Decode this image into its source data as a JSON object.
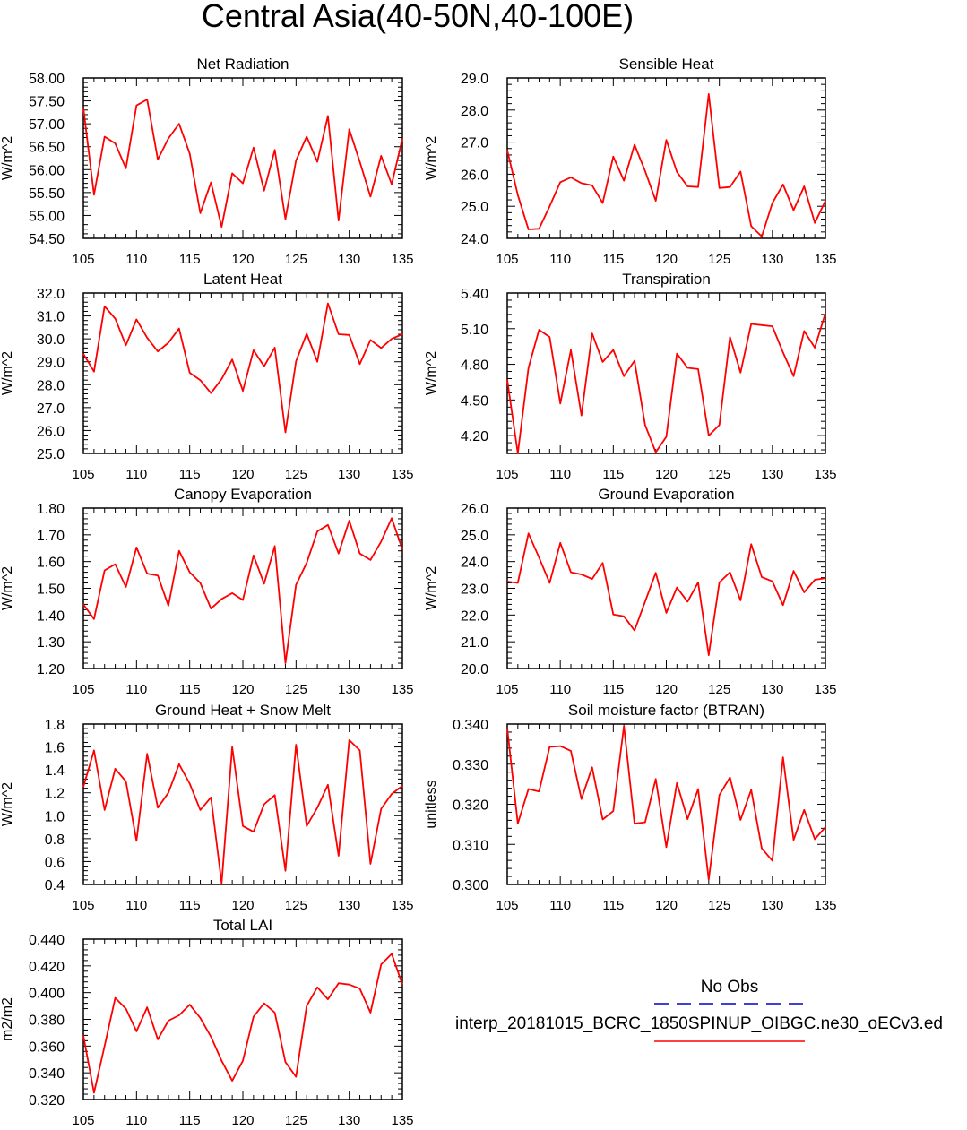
{
  "title": "Central Asia(40-50N,40-100E)",
  "legend": {
    "obs_label": "No Obs",
    "model_label": "interp_20181015_BCRC_1850SPINUP_OIBGC.ne30_oECv3.ed",
    "obs_color": "#0000cc",
    "model_color": "#ff0000"
  },
  "line_color": "#ff0000",
  "chart_data": [
    {
      "type": "line",
      "title": "Net Radiation",
      "ylabel": "W/m^2",
      "xlim": [
        105,
        135
      ],
      "xticks": [
        "105",
        "110",
        "115",
        "120",
        "125",
        "130",
        "135"
      ],
      "ylim": [
        54.5,
        58.0
      ],
      "yticks": [
        "54.50",
        "55.00",
        "55.50",
        "56.00",
        "56.50",
        "57.00",
        "57.50",
        "58.00"
      ],
      "x_start": 105,
      "values": [
        57.35,
        55.45,
        56.72,
        56.57,
        56.03,
        57.4,
        57.53,
        56.22,
        56.68,
        57.0,
        56.35,
        55.05,
        55.72,
        54.75,
        55.92,
        55.7,
        56.48,
        55.54,
        56.43,
        54.92,
        56.2,
        56.72,
        56.17,
        57.17,
        54.89,
        56.88,
        56.17,
        55.41,
        56.3,
        55.68,
        56.68
      ]
    },
    {
      "type": "line",
      "title": "Sensible Heat",
      "ylabel": "W/m^2",
      "xlim": [
        105,
        135
      ],
      "xticks": [
        "105",
        "110",
        "115",
        "120",
        "125",
        "130",
        "135"
      ],
      "ylim": [
        24.0,
        29.0
      ],
      "yticks": [
        "24.0",
        "25.0",
        "26.0",
        "27.0",
        "28.0",
        "29.0"
      ],
      "x_start": 105,
      "values": [
        26.75,
        25.35,
        24.28,
        24.3,
        25.0,
        25.75,
        25.9,
        25.72,
        25.65,
        25.1,
        26.55,
        25.8,
        26.92,
        26.1,
        25.17,
        27.07,
        26.07,
        25.62,
        25.6,
        28.5,
        25.57,
        25.6,
        26.08,
        24.38,
        24.06,
        25.1,
        25.68,
        24.88,
        25.62,
        24.48,
        25.17
      ]
    },
    {
      "type": "line",
      "title": "Latent Heat",
      "ylabel": "W/m^2",
      "xlim": [
        105,
        135
      ],
      "xticks": [
        "105",
        "110",
        "115",
        "120",
        "125",
        "130",
        "135"
      ],
      "ylim": [
        25.0,
        32.0
      ],
      "yticks": [
        "25.0",
        "26.0",
        "27.0",
        "28.0",
        "29.0",
        "30.0",
        "31.0",
        "32.0"
      ],
      "x_start": 105,
      "values": [
        29.35,
        28.57,
        31.42,
        30.88,
        29.72,
        30.85,
        30.05,
        29.45,
        29.83,
        30.45,
        28.52,
        28.2,
        27.63,
        28.25,
        29.1,
        27.73,
        29.5,
        28.8,
        29.62,
        25.92,
        29.02,
        30.22,
        29.0,
        31.55,
        30.2,
        30.17,
        28.9,
        29.95,
        29.6,
        30.0,
        30.2
      ]
    },
    {
      "type": "line",
      "title": "Transpiration",
      "ylabel": "W/m^2",
      "xlim": [
        105,
        135
      ],
      "xticks": [
        "105",
        "110",
        "115",
        "120",
        "125",
        "130",
        "135"
      ],
      "ylim": [
        4.05,
        5.4
      ],
      "yticks": [
        "4.20",
        "4.50",
        "4.80",
        "5.10",
        "5.40"
      ],
      "x_start": 105,
      "values": [
        4.67,
        4.05,
        4.77,
        5.09,
        5.03,
        4.47,
        4.92,
        4.37,
        5.06,
        4.82,
        4.92,
        4.7,
        4.83,
        4.29,
        4.06,
        4.19,
        4.89,
        4.77,
        4.76,
        4.2,
        4.29,
        5.03,
        4.73,
        5.14,
        5.13,
        5.12,
        4.9,
        4.7,
        5.08,
        4.94,
        5.23
      ]
    },
    {
      "type": "line",
      "title": "Canopy Evaporation",
      "ylabel": "W/m^2",
      "xlim": [
        105,
        135
      ],
      "xticks": [
        "105",
        "110",
        "115",
        "120",
        "125",
        "130",
        "135"
      ],
      "ylim": [
        1.2,
        1.8
      ],
      "yticks": [
        "1.20",
        "1.30",
        "1.40",
        "1.50",
        "1.60",
        "1.70",
        "1.80"
      ],
      "x_start": 105,
      "values": [
        1.44,
        1.385,
        1.567,
        1.59,
        1.505,
        1.653,
        1.555,
        1.548,
        1.435,
        1.64,
        1.56,
        1.52,
        1.424,
        1.46,
        1.482,
        1.456,
        1.623,
        1.517,
        1.658,
        1.22,
        1.513,
        1.595,
        1.713,
        1.737,
        1.63,
        1.753,
        1.63,
        1.606,
        1.675,
        1.762,
        1.645
      ]
    },
    {
      "type": "line",
      "title": "Ground Evaporation",
      "ylabel": "W/m^2",
      "xlim": [
        105,
        135
      ],
      "xticks": [
        "105",
        "110",
        "115",
        "120",
        "125",
        "130",
        "135"
      ],
      "ylim": [
        20.0,
        26.0
      ],
      "yticks": [
        "20.0",
        "21.0",
        "22.0",
        "23.0",
        "24.0",
        "25.0",
        "26.0"
      ],
      "x_start": 105,
      "values": [
        23.25,
        23.2,
        25.05,
        24.15,
        23.2,
        24.7,
        23.6,
        23.52,
        23.35,
        23.95,
        22.02,
        21.95,
        21.42,
        22.5,
        23.58,
        22.08,
        23.03,
        22.5,
        23.22,
        20.5,
        23.22,
        23.6,
        22.55,
        24.65,
        23.42,
        23.26,
        22.37,
        23.65,
        22.85,
        23.32,
        23.38
      ]
    },
    {
      "type": "line",
      "title": "Ground Heat + Snow Melt",
      "ylabel": "W/m^2",
      "xlim": [
        105,
        135
      ],
      "xticks": [
        "105",
        "110",
        "115",
        "120",
        "125",
        "130",
        "135"
      ],
      "ylim": [
        0.4,
        1.8
      ],
      "yticks": [
        "0.4",
        "0.6",
        "0.8",
        "1.0",
        "1.2",
        "1.4",
        "1.6",
        "1.8"
      ],
      "x_start": 105,
      "values": [
        1.25,
        1.57,
        1.05,
        1.41,
        1.3,
        0.78,
        1.54,
        1.07,
        1.2,
        1.45,
        1.28,
        1.05,
        1.16,
        0.41,
        1.6,
        0.91,
        0.86,
        1.1,
        1.18,
        0.52,
        1.62,
        0.91,
        1.07,
        1.27,
        0.65,
        1.66,
        1.57,
        0.58,
        1.06,
        1.19,
        1.26
      ]
    },
    {
      "type": "line",
      "title": "Soil moisture factor (BTRAN)",
      "ylabel": "unitless",
      "xlim": [
        105,
        135
      ],
      "xticks": [
        "105",
        "110",
        "115",
        "120",
        "125",
        "130",
        "135"
      ],
      "ylim": [
        0.3,
        0.34
      ],
      "yticks": [
        "0.300",
        "0.310",
        "0.320",
        "0.330",
        "0.340"
      ],
      "x_start": 105,
      "values": [
        0.339,
        0.3152,
        0.3238,
        0.3232,
        0.3343,
        0.3345,
        0.3333,
        0.3213,
        0.3292,
        0.3162,
        0.3183,
        0.3395,
        0.3152,
        0.3155,
        0.3263,
        0.3093,
        0.3253,
        0.3163,
        0.3238,
        0.3012,
        0.3223,
        0.3267,
        0.3161,
        0.3236,
        0.309,
        0.3059,
        0.3317,
        0.3111,
        0.3186,
        0.3113,
        0.3143
      ]
    },
    {
      "type": "line",
      "title": "Total LAI",
      "ylabel": "m2/m2",
      "xlim": [
        105,
        135
      ],
      "xticks": [
        "105",
        "110",
        "115",
        "120",
        "125",
        "130",
        "135"
      ],
      "ylim": [
        0.32,
        0.44
      ],
      "yticks": [
        "0.320",
        "0.340",
        "0.360",
        "0.380",
        "0.400",
        "0.420",
        "0.440"
      ],
      "x_start": 105,
      "values": [
        0.368,
        0.325,
        0.36,
        0.396,
        0.388,
        0.371,
        0.389,
        0.365,
        0.379,
        0.383,
        0.391,
        0.381,
        0.367,
        0.349,
        0.334,
        0.349,
        0.382,
        0.392,
        0.385,
        0.348,
        0.337,
        0.39,
        0.404,
        0.395,
        0.407,
        0.406,
        0.403,
        0.385,
        0.421,
        0.429,
        0.406
      ]
    }
  ]
}
